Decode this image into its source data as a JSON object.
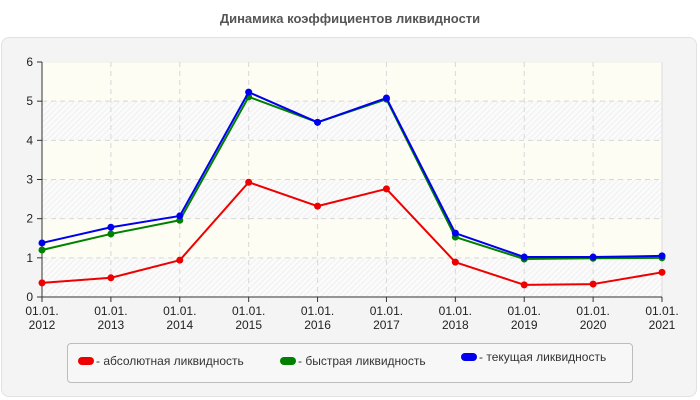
{
  "chart_data": {
    "type": "line",
    "title": "Динамика коэффициентов ликвидности",
    "xlabel": "",
    "ylabel": "",
    "ylim": [
      0,
      6
    ],
    "yticks": [
      0,
      1,
      2,
      3,
      4,
      5,
      6
    ],
    "categories": [
      "01.01.2012",
      "01.01.2013",
      "01.01.2014",
      "01.01.2015",
      "01.01.2016",
      "01.01.2017",
      "01.01.2018",
      "01.01.2019",
      "01.01.2020",
      "01.01.2021"
    ],
    "category_labels": [
      [
        "01.01.",
        "2012"
      ],
      [
        "01.01.",
        "2013"
      ],
      [
        "01.01.",
        "2014"
      ],
      [
        "01.01.",
        "2015"
      ],
      [
        "01.01.",
        "2016"
      ],
      [
        "01.01.",
        "2017"
      ],
      [
        "01.01.",
        "2018"
      ],
      [
        "01.01.",
        "2019"
      ],
      [
        "01.01.",
        "2020"
      ],
      [
        "01.01.",
        "2021"
      ]
    ],
    "series": [
      {
        "name": "абсолютная ликвидность",
        "color": "#ee0000",
        "values": [
          0.36,
          0.49,
          0.94,
          2.93,
          2.32,
          2.76,
          0.89,
          0.31,
          0.33,
          0.63
        ]
      },
      {
        "name": "быстрая ликвидность",
        "color": "#008000",
        "values": [
          1.2,
          1.61,
          1.96,
          5.11,
          4.46,
          5.05,
          1.53,
          0.97,
          0.99,
          1.0
        ]
      },
      {
        "name": "текущая ликвидность",
        "color": "#0000ee",
        "values": [
          1.38,
          1.78,
          2.07,
          5.23,
          4.46,
          5.08,
          1.63,
          1.02,
          1.02,
          1.05
        ]
      }
    ],
    "grid": true,
    "legend_position": "bottom"
  },
  "legend": {
    "items": [
      {
        "label": "- абсолютная ликвидность",
        "color": "#ee0000"
      },
      {
        "label": "- быстрая ликвидность",
        "color": "#008000"
      },
      {
        "label": "- текущая ликвидность",
        "color": "#0000ee"
      }
    ]
  }
}
